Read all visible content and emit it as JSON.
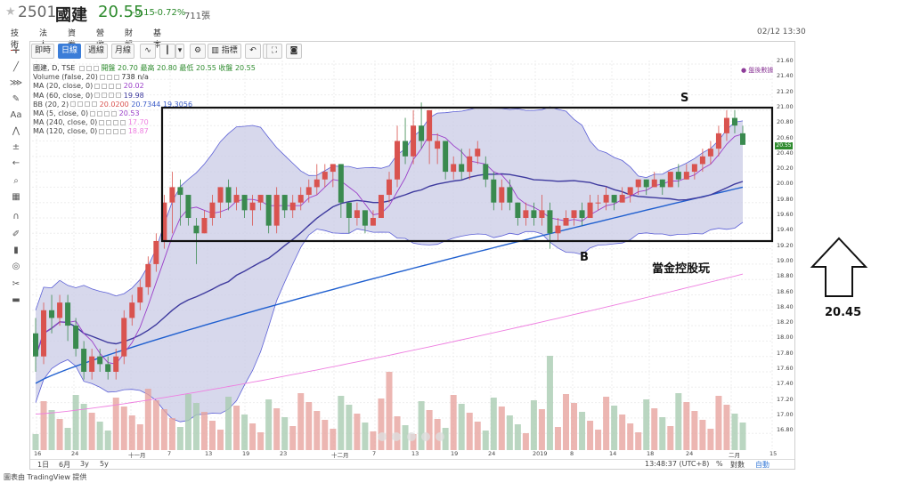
{
  "header": {
    "code": "2501",
    "name": "國建",
    "price": "20.55",
    "change": "-0.15",
    "change_pct": "-0.72%",
    "volume": "711張",
    "datetime": "02/12 13:30"
  },
  "tabs": [
    "技術",
    "法人",
    "資券",
    "營收",
    "財報",
    "基本"
  ],
  "toolbar": {
    "buttons": [
      "即時",
      "日線",
      "週線",
      "月線",
      "指標"
    ],
    "active": "日線"
  },
  "legend": {
    "main": "國建, D, TSE",
    "ohlc": "開盤 20.70 最高 20.80 最低 20.55 收盤 20.55",
    "volume": {
      "name": "Volume (false, 20)",
      "value": "738 n/a"
    },
    "ma20": {
      "name": "MA (20, close, 0)",
      "value": "20.02"
    },
    "ma60": {
      "name": "MA (60, close, 0)",
      "value": "19.98"
    },
    "bb": {
      "name": "BB (20, 2)",
      "v1": "20.0200",
      "v2": "20.7344",
      "v3": "19.3056"
    },
    "ma5": {
      "name": "MA (5, close, 0)",
      "value": "20.53"
    },
    "ma240": {
      "name": "MA (240, close, 0)",
      "value": "17.70"
    },
    "ma120": {
      "name": "MA (120, close, 0)",
      "value": "18.87"
    }
  },
  "right_note": "● 盤後數據",
  "y_axis_labels": [
    "21.60",
    "21.40",
    "21.20",
    "21.00",
    "20.80",
    "20.60",
    "20.40",
    "20.20",
    "20.00",
    "19.80",
    "19.60",
    "19.40",
    "19.20",
    "19.00",
    "18.80",
    "18.60",
    "18.40",
    "18.20",
    "18.00",
    "17.80",
    "17.60",
    "17.40",
    "17.20",
    "17.00",
    "16.80"
  ],
  "current_price_tag": "20.55",
  "x_axis_labels": [
    "16",
    "24",
    "十一月",
    "7",
    "13",
    "19",
    "23",
    "十二月",
    "7",
    "13",
    "19",
    "24",
    "2019",
    "8",
    "14",
    "18",
    "24",
    "二月",
    "15"
  ],
  "bottom_bar": {
    "ranges": [
      "1日",
      "6月",
      "3y",
      "5y"
    ],
    "time": "13:48:37 (UTC+8)",
    "pct": "%",
    "log": "對數",
    "auto": "自動"
  },
  "footer": "圖表由 TradingView 提供",
  "annotations": {
    "s_label": "S",
    "b_label": "B",
    "caption": "當金控股玩",
    "target": "20.45"
  },
  "colors": {
    "up": "#d9534f",
    "down": "#3a8a4f",
    "bb_fill": "#c9cbe6",
    "ma20": "#9b3fc9",
    "ma60": "#3e3a9e",
    "ma120": "#1f5fcf",
    "ma240": "#ee7fe0"
  },
  "chart_data": {
    "type": "candlestick",
    "x": [
      "2018-10-16",
      "2018-11-01",
      "2018-12-01",
      "2019-01-01",
      "2019-02-01"
    ],
    "close_last": 20.55,
    "ylim": [
      16.7,
      21.65
    ]
  }
}
